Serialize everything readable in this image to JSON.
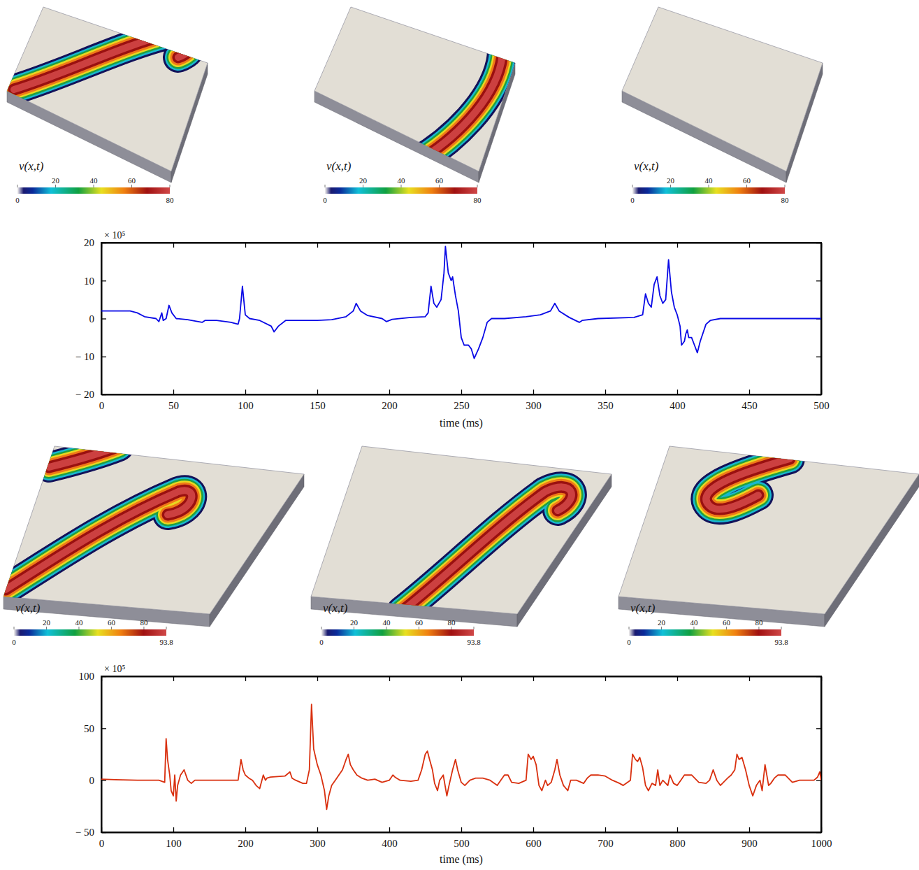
{
  "panels": [
    {
      "label": "v(x,t)",
      "colorbar_range": [
        0,
        80
      ],
      "colorbar_ticks": [
        0,
        20,
        40,
        60,
        80
      ]
    },
    {
      "label": "v(x,t)",
      "colorbar_range": [
        0,
        80
      ],
      "colorbar_ticks": [
        0,
        20,
        40,
        60,
        80
      ]
    },
    {
      "label": "v(x,t)",
      "colorbar_range": [
        0,
        80
      ],
      "colorbar_ticks": [
        0,
        20,
        40,
        60,
        80
      ]
    },
    {
      "label": "v(x,t)",
      "colorbar_range": [
        0,
        93.8
      ],
      "colorbar_ticks": [
        0,
        20,
        40,
        60,
        80,
        93.8
      ]
    },
    {
      "label": "v(x,t)",
      "colorbar_range": [
        0,
        93.8
      ],
      "colorbar_ticks": [
        0,
        20,
        40,
        60,
        80,
        93.8
      ]
    },
    {
      "label": "v(x,t)",
      "colorbar_range": [
        0,
        93.8
      ],
      "colorbar_ticks": [
        0,
        20,
        40,
        60,
        80,
        93.8
      ]
    }
  ],
  "chart_data": [
    {
      "type": "line",
      "xlabel": "time (ms)",
      "annotations": [
        "× 10⁵"
      ],
      "xlim": [
        0,
        500
      ],
      "xticks": [
        0,
        50,
        100,
        150,
        200,
        250,
        300,
        350,
        400,
        450,
        500
      ],
      "ylim": [
        -20,
        20
      ],
      "yticks": [
        {
          "value": -20,
          "label": "− 20"
        },
        {
          "value": -10,
          "label": "− 10"
        },
        0,
        10,
        20
      ],
      "x": [
        0,
        20,
        25,
        30,
        38,
        40,
        42,
        43,
        45,
        47,
        49,
        52,
        60,
        70,
        72,
        80,
        90,
        95,
        96,
        98,
        100,
        103,
        110,
        118,
        120,
        123,
        128,
        140,
        150,
        160,
        170,
        175,
        177,
        180,
        185,
        195,
        198,
        202,
        215,
        225,
        227,
        229,
        231,
        233,
        236,
        238,
        239,
        241,
        243,
        244,
        246,
        248,
        250,
        252,
        255,
        257,
        259,
        262,
        265,
        268,
        271,
        280,
        295,
        305,
        312,
        315,
        318,
        325,
        332,
        334,
        345,
        370,
        376,
        378,
        380,
        382,
        384,
        386,
        388,
        390,
        392,
        394,
        396,
        398,
        400,
        402,
        403,
        405,
        406,
        407,
        408,
        410,
        412,
        414,
        416,
        420,
        423,
        430,
        440,
        450,
        500
      ],
      "series": [
        {
          "color": "#0a0ae6",
          "values": [
            2,
            2,
            1.5,
            0.5,
            0,
            -0.8,
            1.5,
            -0.5,
            0,
            3.5,
            1.5,
            0,
            -0.3,
            -1,
            -0.5,
            -0.5,
            -1,
            -1.5,
            0,
            8.5,
            1,
            0,
            -0.5,
            -2,
            -3.5,
            -2,
            -0.5,
            -0.5,
            -0.5,
            -0.3,
            0.5,
            2,
            4,
            2,
            0.8,
            0,
            -0.8,
            -0.2,
            0.3,
            0.5,
            1.5,
            8.5,
            4,
            3,
            5,
            12,
            19,
            12,
            10,
            11,
            6,
            2,
            -5,
            -7,
            -7,
            -8,
            -10.5,
            -8,
            -5,
            -1,
            0,
            0,
            0.5,
            1,
            2,
            4,
            2,
            0.3,
            -1,
            -0.5,
            0,
            0.3,
            1,
            6.5,
            4,
            3,
            9,
            11,
            6,
            4,
            5,
            15.5,
            7,
            3,
            1,
            -2,
            -7,
            -6,
            -4,
            -3,
            -5,
            -5,
            -7,
            -9,
            -6,
            -1.5,
            -0.5,
            0,
            0,
            0,
            0
          ]
        }
      ]
    },
    {
      "type": "line",
      "xlabel": "time (ms)",
      "annotations": [
        "× 10⁵"
      ],
      "xlim": [
        0,
        1000
      ],
      "xticks": [
        0,
        100,
        200,
        300,
        400,
        500,
        600,
        700,
        800,
        900,
        1000
      ],
      "ylim": [
        -50,
        100
      ],
      "yticks": [
        {
          "value": -50,
          "label": "− 50"
        },
        0,
        50,
        100
      ],
      "x": [
        0,
        20,
        50,
        80,
        88,
        90,
        92,
        95,
        97,
        100,
        102,
        104,
        106,
        110,
        115,
        120,
        125,
        130,
        150,
        190,
        192,
        194,
        197,
        200,
        205,
        210,
        215,
        220,
        225,
        228,
        230,
        235,
        255,
        262,
        265,
        270,
        280,
        285,
        289,
        292,
        295,
        300,
        305,
        310,
        313,
        316,
        320,
        325,
        335,
        340,
        343,
        346,
        350,
        355,
        362,
        370,
        380,
        390,
        400,
        405,
        408,
        415,
        430,
        440,
        445,
        450,
        453,
        456,
        460,
        463,
        467,
        470,
        475,
        480,
        483,
        488,
        492,
        495,
        500,
        505,
        512,
        520,
        530,
        540,
        550,
        560,
        565,
        570,
        580,
        590,
        593,
        597,
        600,
        604,
        608,
        612,
        617,
        620,
        625,
        630,
        633,
        637,
        642,
        648,
        652,
        660,
        670,
        675,
        680,
        690,
        700,
        705,
        710,
        720,
        725,
        735,
        738,
        742,
        745,
        748,
        752,
        756,
        760,
        765,
        770,
        773,
        776,
        780,
        787,
        790,
        795,
        800,
        805,
        810,
        820,
        830,
        840,
        845,
        850,
        855,
        860,
        870,
        875,
        880,
        883,
        886,
        890,
        895,
        900,
        905,
        910,
        915,
        918,
        922,
        927,
        930,
        935,
        940,
        950,
        960,
        970,
        990,
        995,
        998,
        1000
      ],
      "series": [
        {
          "color": "#d9300f",
          "values": [
            1,
            0.5,
            0,
            0,
            -2,
            40,
            20,
            5,
            -10,
            -15,
            5,
            -20,
            -5,
            5,
            10,
            0,
            -3,
            0,
            0,
            0,
            10,
            20,
            10,
            5,
            2,
            0,
            -5,
            -8,
            5,
            0,
            2,
            3,
            4,
            8,
            2,
            0,
            -3,
            -3,
            10,
            73,
            30,
            15,
            5,
            -10,
            -28,
            -15,
            -5,
            0,
            10,
            20,
            25,
            15,
            10,
            5,
            2,
            0,
            1,
            -2,
            0,
            5,
            3,
            0,
            -1,
            0,
            10,
            25,
            28,
            20,
            10,
            -3,
            -10,
            0,
            5,
            -15,
            -5,
            10,
            20,
            10,
            -2,
            -5,
            0,
            2,
            2,
            0,
            -5,
            5,
            5,
            -2,
            -3,
            0,
            25,
            20,
            23,
            15,
            -5,
            -10,
            0,
            -5,
            -2,
            10,
            20,
            5,
            -5,
            -10,
            0,
            0,
            -3,
            2,
            5,
            5,
            4,
            2,
            0,
            -3,
            -5,
            0,
            25,
            20,
            18,
            22,
            12,
            -5,
            -10,
            -3,
            -5,
            10,
            -5,
            0,
            -5,
            5,
            -3,
            -5,
            0,
            5,
            5,
            -2,
            -3,
            0,
            10,
            0,
            -5,
            2,
            5,
            10,
            25,
            20,
            22,
            10,
            -5,
            -15,
            -5,
            0,
            -10,
            15,
            -5,
            -3,
            2,
            5,
            5,
            -2,
            0,
            0,
            3,
            8,
            0
          ]
        }
      ]
    }
  ]
}
